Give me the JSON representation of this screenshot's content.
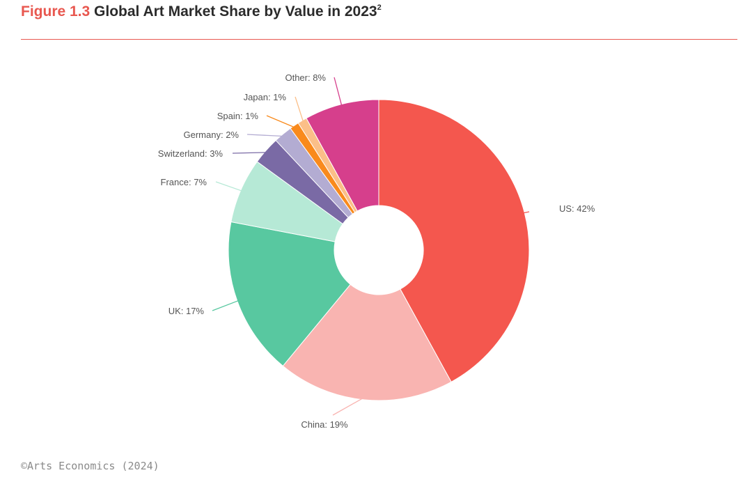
{
  "header": {
    "figure_number": "Figure 1.3",
    "title": "Global Art Market Share by Value in 2023",
    "superscript": "2"
  },
  "source": "©Arts Economics (2024)",
  "chart_data": {
    "type": "pie",
    "variant": "donut",
    "title": "Global Art Market Share by Value in 2023",
    "unit": "%",
    "slices": [
      {
        "name": "US",
        "value": 42,
        "label": "US: 42%",
        "color": "#f4574e"
      },
      {
        "name": "China",
        "value": 19,
        "label": "China: 19%",
        "color": "#f9b4b1"
      },
      {
        "name": "UK",
        "value": 17,
        "label": "UK: 17%",
        "color": "#58c8a0"
      },
      {
        "name": "France",
        "value": 7,
        "label": "France: 7%",
        "color": "#b6e9d6"
      },
      {
        "name": "Switzerland",
        "value": 3,
        "label": "Switzerland: 3%",
        "color": "#7a6aa5"
      },
      {
        "name": "Germany",
        "value": 2,
        "label": "Germany: 2%",
        "color": "#b3acd2"
      },
      {
        "name": "Spain",
        "value": 1,
        "label": "Spain: 1%",
        "color": "#f98a1c"
      },
      {
        "name": "Japan",
        "value": 1,
        "label": "Japan: 1%",
        "color": "#fbbf88"
      },
      {
        "name": "Other",
        "value": 8,
        "label": "Other: 8%",
        "color": "#d63f8c"
      }
    ]
  }
}
